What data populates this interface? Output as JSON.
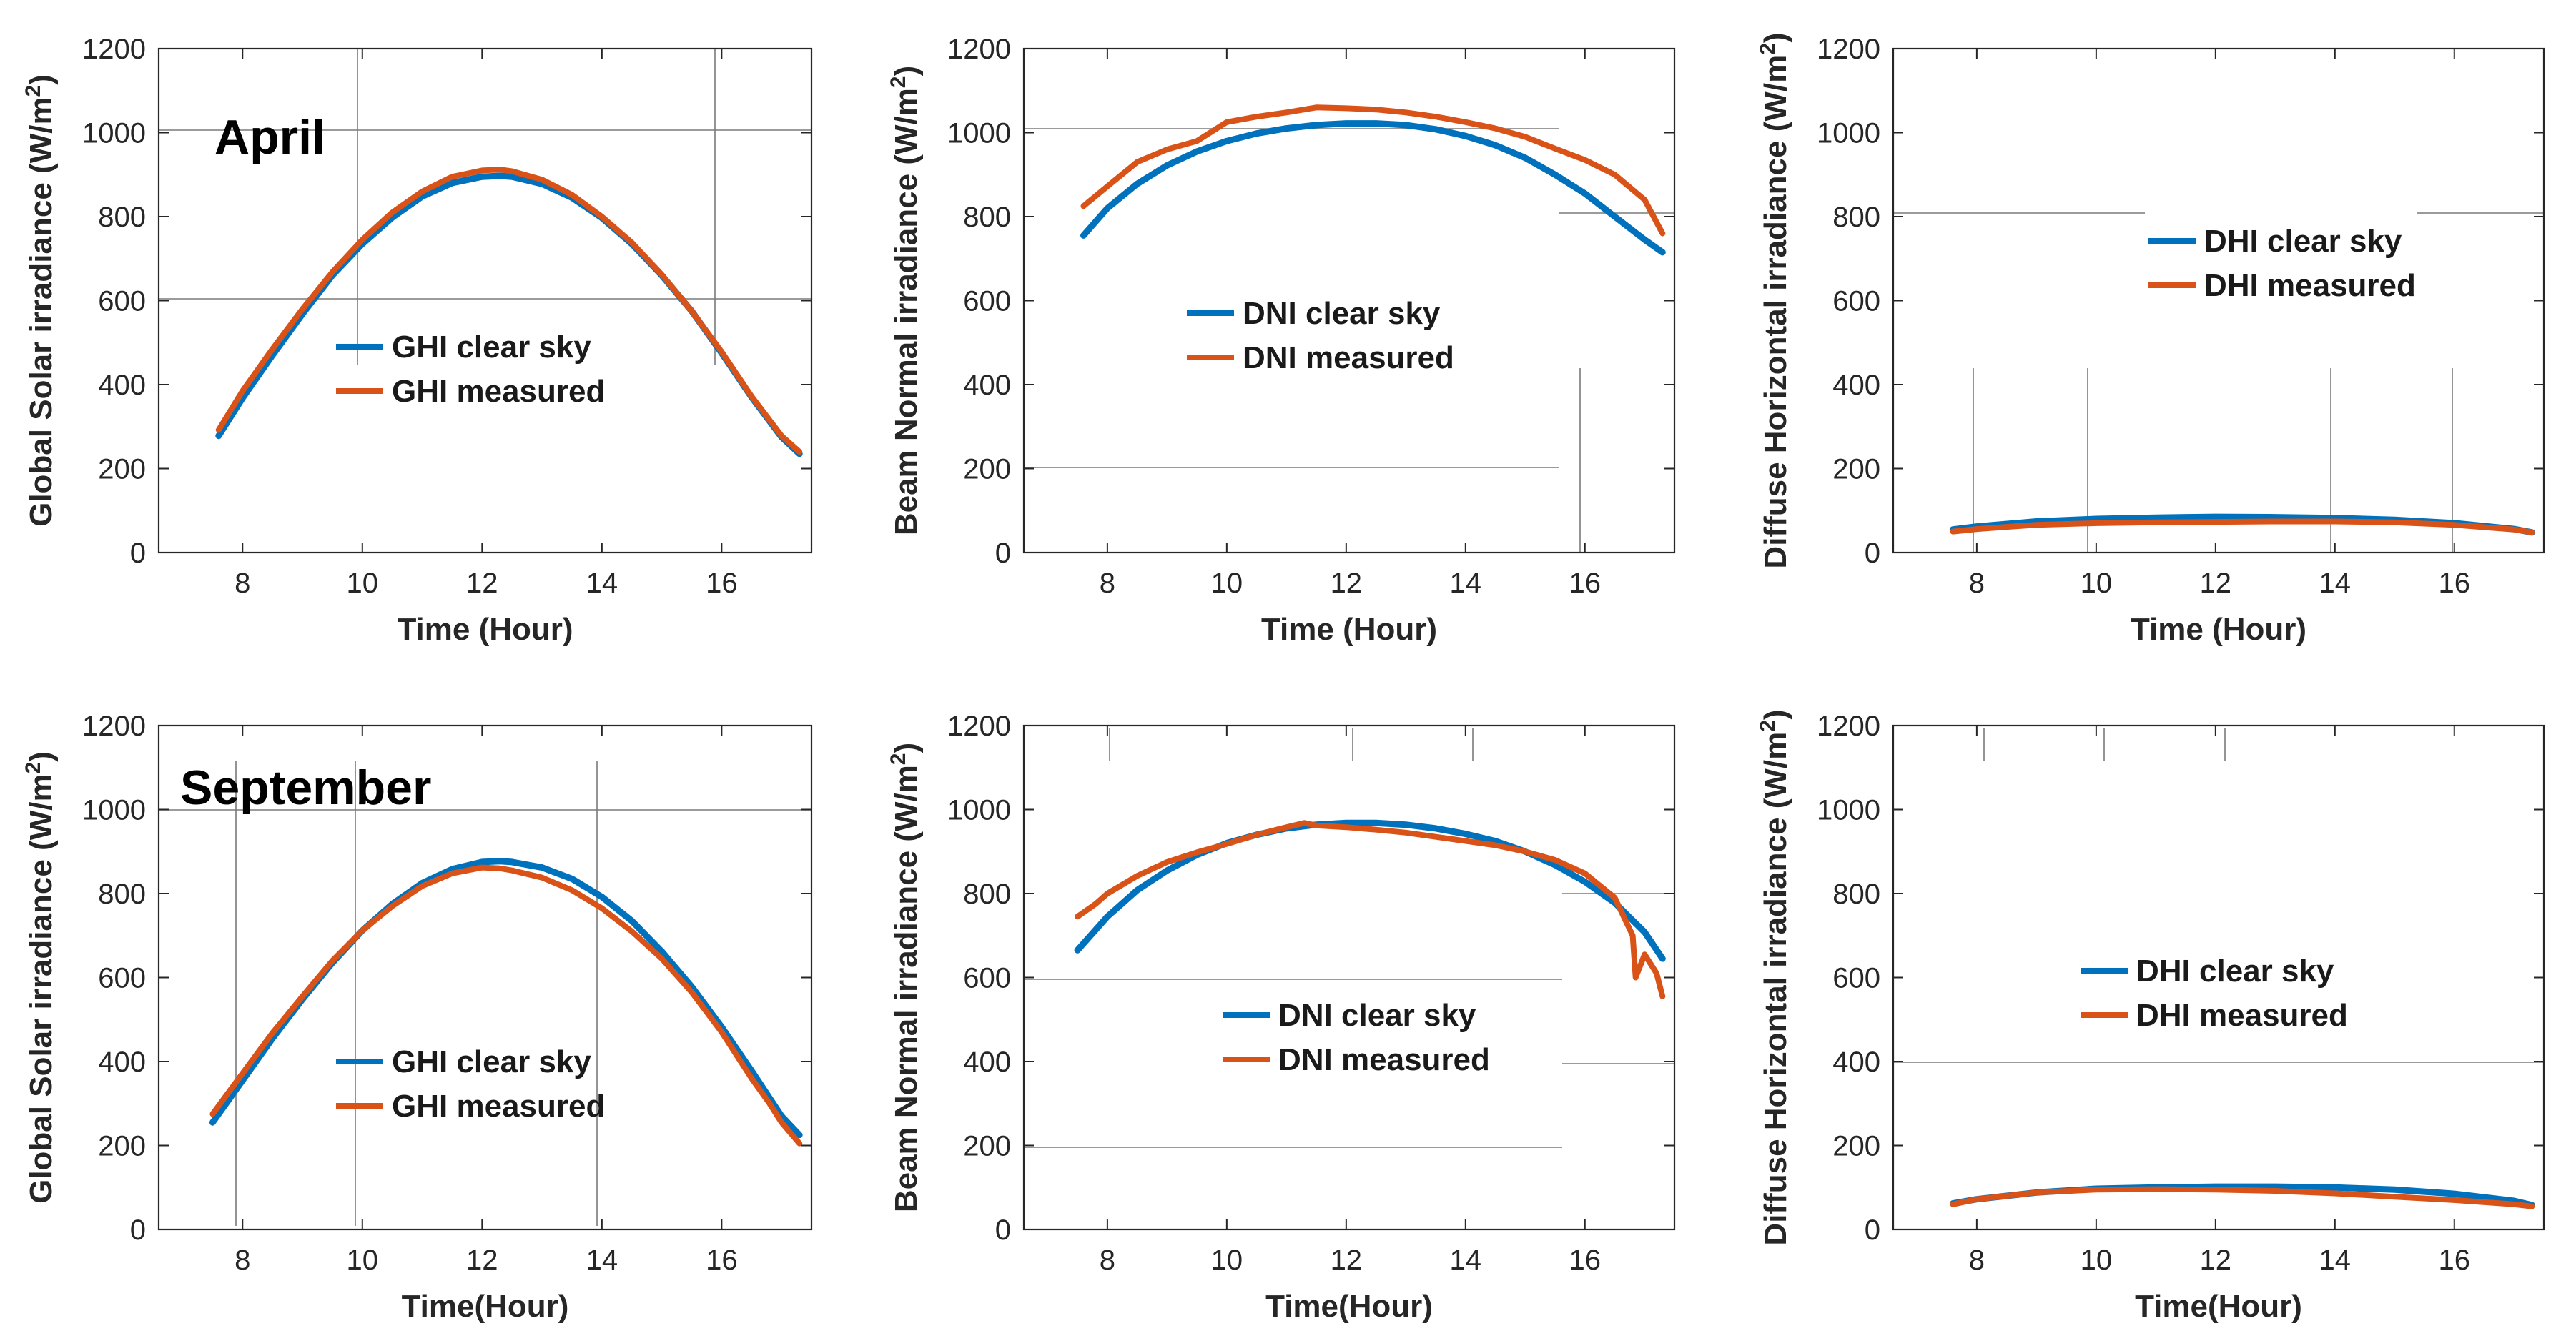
{
  "figure": {
    "colors": {
      "clear": "#0072BD",
      "measured": "#D95319",
      "axis": "#262626"
    }
  },
  "chart_data": [
    {
      "id": "april-ghi",
      "type": "line",
      "month": "April",
      "xlabel": "Time (Hour)",
      "ylabel_main": "Global Solar irradiance (W/m",
      "ylabel_sup": "2",
      "ylabel_end": ")",
      "xlim": [
        6.6,
        17.5
      ],
      "ylim": [
        0,
        1200
      ],
      "xticks": [
        8,
        10,
        12,
        14,
        16
      ],
      "yticks": [
        0,
        200,
        400,
        600,
        800,
        1000,
        1200
      ],
      "legend": {
        "position": "middle-left",
        "entries": [
          "GHI clear sky",
          "GHI measured"
        ]
      },
      "series": [
        {
          "name": "GHI clear sky",
          "color": "#0072BD",
          "x": [
            7.6,
            8.0,
            8.5,
            9.0,
            9.5,
            10.0,
            10.5,
            11.0,
            11.5,
            12.0,
            12.3,
            12.5,
            13.0,
            13.5,
            14.0,
            14.5,
            15.0,
            15.5,
            16.0,
            16.5,
            17.0,
            17.3
          ],
          "y": [
            278,
            368,
            470,
            568,
            660,
            735,
            798,
            848,
            880,
            895,
            897,
            895,
            878,
            845,
            797,
            735,
            660,
            575,
            475,
            370,
            275,
            235
          ]
        },
        {
          "name": "GHI measured",
          "color": "#D95319",
          "x": [
            7.6,
            8.0,
            8.5,
            9.0,
            9.5,
            10.0,
            10.5,
            11.0,
            11.5,
            12.0,
            12.3,
            12.5,
            13.0,
            13.5,
            14.0,
            14.5,
            15.0,
            15.5,
            16.0,
            16.5,
            17.0,
            17.3
          ],
          "y": [
            292,
            385,
            485,
            580,
            668,
            745,
            810,
            860,
            895,
            910,
            912,
            908,
            888,
            852,
            800,
            738,
            662,
            575,
            478,
            372,
            278,
            240
          ]
        }
      ]
    },
    {
      "id": "april-dni",
      "type": "line",
      "xlabel": "Time (Hour)",
      "ylabel_main": "Beam Normal irradiance (W/m",
      "ylabel_sup": "2",
      "ylabel_end": ")",
      "xlim": [
        6.6,
        17.5
      ],
      "ylim": [
        0,
        1200
      ],
      "xticks": [
        8,
        10,
        12,
        14,
        16
      ],
      "yticks": [
        0,
        200,
        400,
        600,
        800,
        1000,
        1200
      ],
      "legend": {
        "position": "center",
        "entries": [
          "DNI clear sky",
          "DNI measured"
        ]
      },
      "series": [
        {
          "name": "DNI clear sky",
          "color": "#0072BD",
          "x": [
            7.6,
            8.0,
            8.5,
            9.0,
            9.5,
            10.0,
            10.5,
            11.0,
            11.5,
            12.0,
            12.5,
            13.0,
            13.5,
            14.0,
            14.5,
            15.0,
            15.5,
            16.0,
            16.5,
            17.0,
            17.3
          ],
          "y": [
            755,
            820,
            878,
            922,
            955,
            980,
            998,
            1010,
            1018,
            1022,
            1022,
            1018,
            1008,
            992,
            970,
            940,
            900,
            855,
            800,
            745,
            715
          ]
        },
        {
          "name": "DNI measured",
          "color": "#D95319",
          "x": [
            7.6,
            8.0,
            8.5,
            9.0,
            9.5,
            10.0,
            10.5,
            11.0,
            11.5,
            12.0,
            12.5,
            13.0,
            13.5,
            14.0,
            14.5,
            15.0,
            15.5,
            16.0,
            16.5,
            17.0,
            17.3
          ],
          "y": [
            825,
            872,
            930,
            960,
            980,
            1025,
            1038,
            1048,
            1060,
            1058,
            1055,
            1048,
            1038,
            1025,
            1010,
            990,
            962,
            935,
            900,
            840,
            760
          ]
        }
      ]
    },
    {
      "id": "april-dhi",
      "type": "line",
      "xlabel": "Time (Hour)",
      "ylabel_main": "Diffuse Horizontal irradiance (W/m",
      "ylabel_sup": "2",
      "ylabel_end": ")",
      "xlim": [
        6.6,
        17.5
      ],
      "ylim": [
        0,
        1200
      ],
      "xticks": [
        8,
        10,
        12,
        14,
        16
      ],
      "yticks": [
        0,
        200,
        400,
        600,
        800,
        1000,
        1200
      ],
      "legend": {
        "position": "top-center",
        "entries": [
          "DHI clear sky",
          "DHI measured"
        ]
      },
      "series": [
        {
          "name": "DHI clear sky",
          "color": "#0072BD",
          "x": [
            7.6,
            8.0,
            9.0,
            10.0,
            11.0,
            12.0,
            13.0,
            14.0,
            15.0,
            16.0,
            17.0,
            17.3
          ],
          "y": [
            55,
            62,
            74,
            80,
            83,
            85,
            84,
            82,
            78,
            70,
            56,
            48
          ]
        },
        {
          "name": "DHI measured",
          "color": "#D95319",
          "x": [
            7.6,
            8.0,
            9.0,
            10.0,
            11.0,
            12.0,
            13.0,
            14.0,
            15.0,
            16.0,
            17.0,
            17.3
          ],
          "y": [
            50,
            56,
            66,
            70,
            72,
            73,
            74,
            74,
            72,
            66,
            55,
            48
          ]
        }
      ]
    },
    {
      "id": "september-ghi",
      "type": "line",
      "month": "September",
      "xlabel": "Time(Hour)",
      "ylabel_main": "Global Solar irradiance (W/m",
      "ylabel_sup": "2",
      "ylabel_end": ")",
      "xlim": [
        6.6,
        17.5
      ],
      "ylim": [
        0,
        1200
      ],
      "xticks": [
        8,
        10,
        12,
        14,
        16
      ],
      "yticks": [
        0,
        200,
        400,
        600,
        800,
        1000,
        1200
      ],
      "legend": {
        "position": "bottom-center",
        "entries": [
          "GHI clear sky",
          "GHI measured"
        ]
      },
      "series": [
        {
          "name": "GHI clear sky",
          "color": "#0072BD",
          "x": [
            7.5,
            8.0,
            8.5,
            9.0,
            9.5,
            10.0,
            10.5,
            11.0,
            11.5,
            12.0,
            12.3,
            12.5,
            13.0,
            13.5,
            14.0,
            14.5,
            15.0,
            15.5,
            16.0,
            16.5,
            17.0,
            17.3
          ],
          "y": [
            255,
            355,
            455,
            548,
            635,
            712,
            775,
            825,
            858,
            875,
            877,
            875,
            862,
            835,
            792,
            735,
            662,
            578,
            482,
            378,
            270,
            225
          ]
        },
        {
          "name": "GHI measured",
          "color": "#D95319",
          "x": [
            7.5,
            8.0,
            8.5,
            9.0,
            9.5,
            10.0,
            10.5,
            11.0,
            11.5,
            12.0,
            12.3,
            12.5,
            13.0,
            13.5,
            14.0,
            14.5,
            15.0,
            15.5,
            16.0,
            16.5,
            16.8,
            17.0,
            17.3
          ],
          "y": [
            275,
            372,
            468,
            555,
            640,
            712,
            770,
            818,
            848,
            862,
            860,
            855,
            838,
            808,
            765,
            710,
            645,
            565,
            470,
            360,
            300,
            255,
            205
          ]
        }
      ]
    },
    {
      "id": "september-dni",
      "type": "line",
      "xlabel": "Time(Hour)",
      "ylabel_main": "Beam Normal irradiance (W/m",
      "ylabel_sup": "2",
      "ylabel_end": ")",
      "xlim": [
        6.6,
        17.5
      ],
      "ylim": [
        0,
        1200
      ],
      "xticks": [
        8,
        10,
        12,
        14,
        16
      ],
      "yticks": [
        0,
        200,
        400,
        600,
        800,
        1000,
        1200
      ],
      "legend": {
        "position": "center",
        "entries": [
          "DNI clear sky",
          "DNI measured"
        ]
      },
      "series": [
        {
          "name": "DNI clear sky",
          "color": "#0072BD",
          "x": [
            7.5,
            8.0,
            8.5,
            9.0,
            9.5,
            10.0,
            10.5,
            11.0,
            11.5,
            12.0,
            12.5,
            13.0,
            13.5,
            14.0,
            14.5,
            15.0,
            15.5,
            16.0,
            16.5,
            17.0,
            17.3
          ],
          "y": [
            665,
            745,
            808,
            855,
            892,
            920,
            940,
            955,
            964,
            968,
            968,
            964,
            955,
            942,
            925,
            900,
            868,
            828,
            778,
            708,
            645
          ]
        },
        {
          "name": "DNI measured",
          "color": "#D95319",
          "x": [
            7.5,
            7.8,
            8.0,
            8.5,
            9.0,
            9.5,
            10.0,
            10.5,
            11.0,
            11.3,
            11.5,
            12.0,
            12.5,
            13.0,
            13.5,
            14.0,
            14.5,
            15.0,
            15.5,
            16.0,
            16.5,
            16.8,
            16.85,
            17.0,
            17.2,
            17.3
          ],
          "y": [
            745,
            775,
            800,
            842,
            875,
            898,
            918,
            940,
            958,
            968,
            962,
            958,
            952,
            945,
            935,
            925,
            915,
            900,
            880,
            848,
            790,
            700,
            600,
            655,
            610,
            555
          ]
        }
      ]
    },
    {
      "id": "september-dhi",
      "type": "line",
      "xlabel": "Time(Hour)",
      "ylabel_main": "Diffuse Horizontal irradiance (W/m",
      "ylabel_sup": "2",
      "ylabel_end": ")",
      "xlim": [
        6.6,
        17.5
      ],
      "ylim": [
        0,
        1200
      ],
      "xticks": [
        8,
        10,
        12,
        14,
        16
      ],
      "yticks": [
        0,
        200,
        400,
        600,
        800,
        1000,
        1200
      ],
      "legend": {
        "position": "center",
        "entries": [
          "DHI clear sky",
          "DHI measured"
        ]
      },
      "series": [
        {
          "name": "DHI clear sky",
          "color": "#0072BD",
          "x": [
            7.6,
            8.0,
            9.0,
            10.0,
            11.0,
            12.0,
            13.0,
            14.0,
            15.0,
            16.0,
            17.0,
            17.3
          ],
          "y": [
            62,
            72,
            88,
            97,
            100,
            102,
            102,
            100,
            95,
            85,
            68,
            58
          ]
        },
        {
          "name": "DHI measured",
          "color": "#D95319",
          "x": [
            7.6,
            8.0,
            9.0,
            10.0,
            11.0,
            12.0,
            13.0,
            14.0,
            15.0,
            16.0,
            17.0,
            17.3
          ],
          "y": [
            60,
            72,
            88,
            95,
            96,
            95,
            92,
            86,
            78,
            70,
            60,
            55
          ]
        }
      ]
    }
  ]
}
